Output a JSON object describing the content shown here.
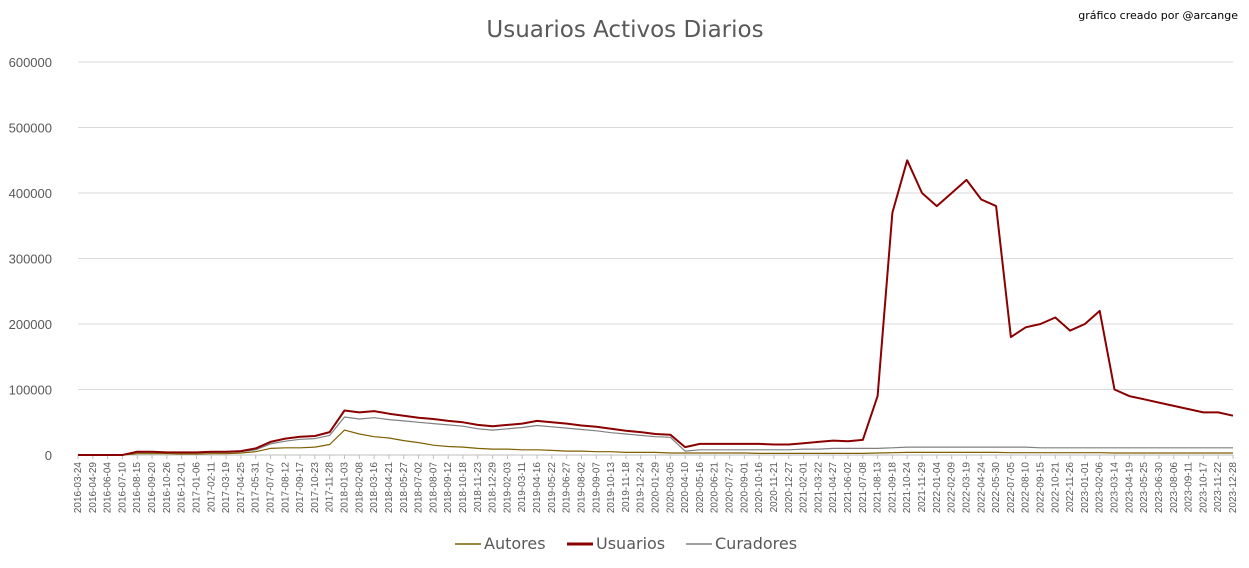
{
  "chart_data": {
    "type": "line",
    "title": "Usuarios Activos Diarios",
    "credit": "gráfico creado por @arcange",
    "ylim": [
      0,
      600000
    ],
    "yticks": [
      "0",
      "100000",
      "200000",
      "300000",
      "400000",
      "500000",
      "600000"
    ],
    "grid": true,
    "legend_position": "bottom",
    "categories": [
      "2016-03-24",
      "2016-04-29",
      "2016-06-04",
      "2016-07-10",
      "2016-08-15",
      "2016-09-20",
      "2016-10-26",
      "2016-12-01",
      "2017-01-06",
      "2017-02-11",
      "2017-03-19",
      "2017-04-25",
      "2017-05-31",
      "2017-07-07",
      "2017-08-12",
      "2017-09-17",
      "2017-10-23",
      "2017-11-28",
      "2018-01-03",
      "2018-02-08",
      "2018-03-16",
      "2018-04-21",
      "2018-05-27",
      "2018-07-02",
      "2018-08-07",
      "2018-09-12",
      "2018-10-18",
      "2018-11-23",
      "2018-12-29",
      "2019-02-03",
      "2019-03-11",
      "2019-04-16",
      "2019-05-22",
      "2019-06-27",
      "2019-08-02",
      "2019-09-07",
      "2019-10-13",
      "2019-11-18",
      "2019-12-24",
      "2020-01-29",
      "2020-03-05",
      "2020-04-10",
      "2020-05-16",
      "2020-06-21",
      "2020-07-27",
      "2020-09-01",
      "2020-10-16",
      "2020-11-21",
      "2020-12-27",
      "2021-02-01",
      "2021-03-22",
      "2021-04-27",
      "2021-06-02",
      "2021-07-08",
      "2021-08-13",
      "2021-09-18",
      "2021-10-24",
      "2021-11-29",
      "2022-01-04",
      "2022-02-09",
      "2022-03-19",
      "2022-04-24",
      "2022-05-30",
      "2022-07-05",
      "2022-08-10",
      "2022-09-15",
      "2022-10-21",
      "2022-11-26",
      "2023-01-01",
      "2023-02-06",
      "2023-03-14",
      "2023-04-19",
      "2023-05-25",
      "2023-06-30",
      "2023-08-06",
      "2023-09-11",
      "2023-10-17",
      "2023-11-22",
      "2023-12-28"
    ],
    "series": [
      {
        "name": "Autores",
        "color": "#7f6000",
        "values": [
          0,
          0,
          0,
          0,
          2000,
          2000,
          2000,
          1500,
          1500,
          2000,
          2000,
          3000,
          5000,
          10000,
          11000,
          11000,
          12000,
          16000,
          38000,
          32000,
          28000,
          26000,
          22000,
          19000,
          15000,
          13000,
          12000,
          10000,
          9000,
          9000,
          8000,
          8000,
          7000,
          6000,
          6000,
          5000,
          5000,
          4000,
          4000,
          4000,
          3000,
          3000,
          3000,
          3000,
          3000,
          3000,
          2500,
          2500,
          2500,
          2500,
          2500,
          2500,
          2500,
          2500,
          3000,
          3500,
          4000,
          4000,
          4000,
          4000,
          4000,
          4000,
          4000,
          3500,
          3500,
          3500,
          3500,
          3500,
          3500,
          3500,
          3000,
          3000,
          3000,
          3000,
          3000,
          3000,
          3000,
          3000,
          3000
        ]
      },
      {
        "name": "Usuarios",
        "color": "#8b0000",
        "values": [
          0,
          0,
          0,
          0,
          5000,
          5000,
          4000,
          4000,
          4000,
          5000,
          5000,
          6000,
          10000,
          20000,
          25000,
          28000,
          29000,
          35000,
          68000,
          65000,
          67000,
          63000,
          60000,
          57000,
          55000,
          52000,
          50000,
          46000,
          44000,
          46000,
          48000,
          52000,
          50000,
          48000,
          45000,
          43000,
          40000,
          37000,
          35000,
          32000,
          31000,
          12000,
          17000,
          17000,
          17000,
          17000,
          17000,
          16000,
          16000,
          18000,
          20000,
          22000,
          21000,
          23000,
          90000,
          370000,
          450000,
          400000,
          380000,
          400000,
          420000,
          390000,
          380000,
          180000,
          195000,
          200000,
          210000,
          190000,
          200000,
          220000,
          100000,
          90000,
          85000,
          80000,
          75000,
          70000,
          65000,
          65000,
          60000
        ]
      },
      {
        "name": "Curadores",
        "color": "#808080",
        "values": [
          0,
          0,
          0,
          0,
          4000,
          4000,
          3500,
          3500,
          3500,
          4000,
          4000,
          5000,
          8000,
          17000,
          21000,
          24000,
          25000,
          30000,
          58000,
          55000,
          57000,
          54000,
          52000,
          50000,
          48000,
          46000,
          44000,
          40000,
          38000,
          40000,
          42000,
          45000,
          43000,
          41000,
          39000,
          37000,
          34000,
          32000,
          30000,
          28000,
          27000,
          6000,
          8000,
          8000,
          8000,
          8000,
          8000,
          8000,
          8000,
          9000,
          9000,
          10000,
          10000,
          10000,
          10000,
          11000,
          12000,
          12000,
          12000,
          12000,
          12000,
          12000,
          12000,
          12000,
          12000,
          11000,
          11000,
          11000,
          11000,
          11000,
          11000,
          11000,
          11000,
          11000,
          11000,
          11000,
          11000,
          11000,
          11000
        ]
      }
    ]
  }
}
